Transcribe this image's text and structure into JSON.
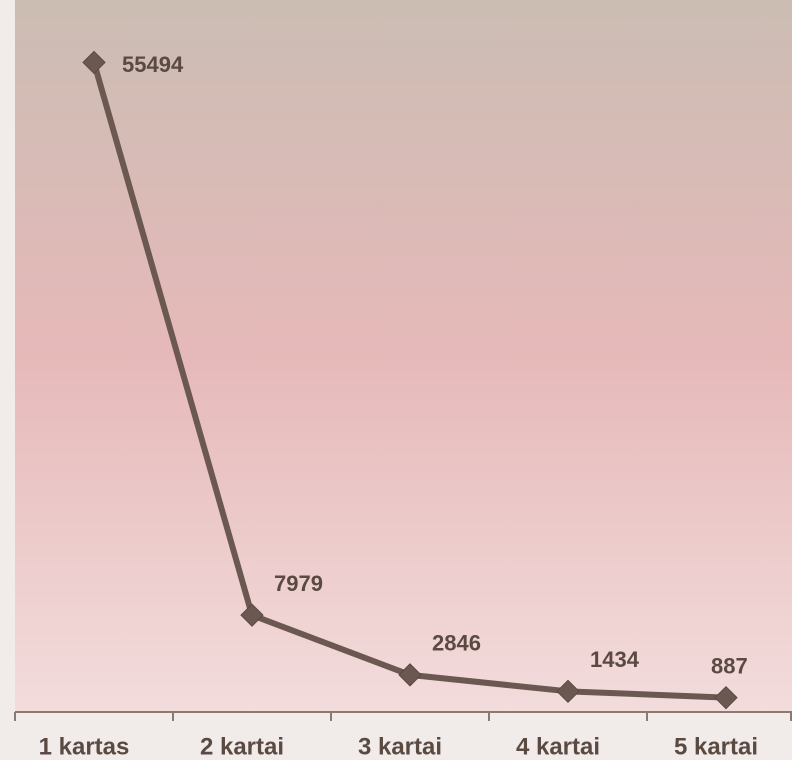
{
  "chart_data": {
    "type": "line",
    "categories": [
      "1 kartas",
      "2 kartai",
      "3 kartai",
      "4 kartai",
      "5 kartai"
    ],
    "values": [
      55494,
      7979,
      2846,
      1434,
      887
    ],
    "color": "#6b5850",
    "ylim": [
      0,
      60000
    ]
  }
}
